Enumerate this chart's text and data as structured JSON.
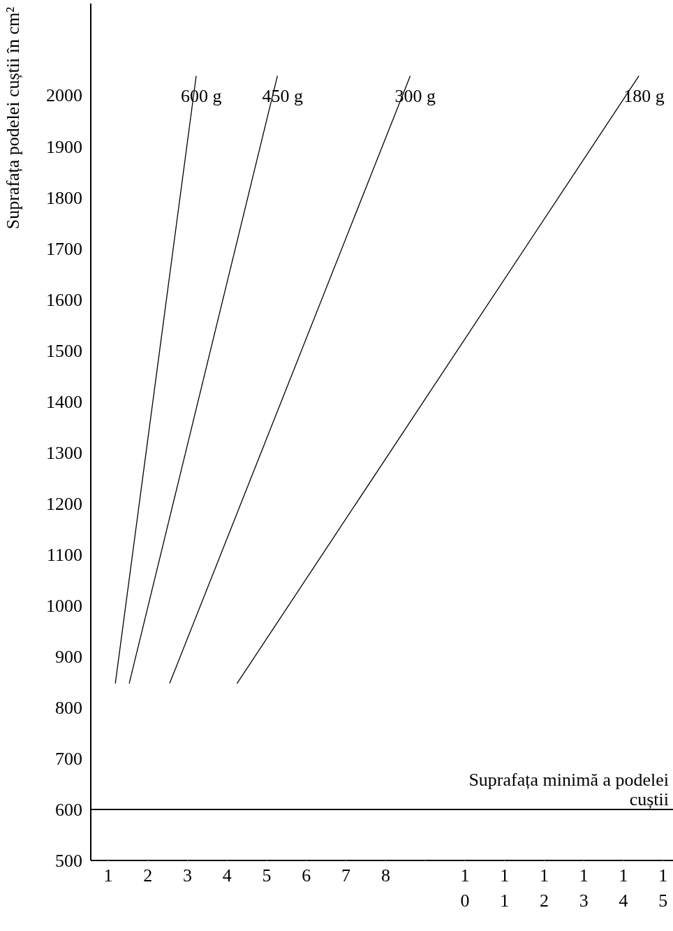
{
  "chart_data": {
    "type": "line",
    "ylabel": "Suprafața podelei cuștii în cm²",
    "xlim": [
      0.56,
      15.25
    ],
    "ylim": [
      500,
      2180
    ],
    "xticks": [
      1,
      2,
      3,
      4,
      5,
      6,
      7,
      8,
      {
        "value": 9,
        "label": null
      },
      10,
      11,
      12,
      13,
      14,
      15
    ],
    "yticks": [
      500,
      600,
      700,
      800,
      900,
      1000,
      1100,
      1200,
      1300,
      1400,
      1500,
      1600,
      1700,
      1800,
      1900,
      2000
    ],
    "series": [
      {
        "name": "600 g",
        "color": "#000000",
        "x": [
          1.18,
          3.22
        ],
        "values": [
          847,
          2038
        ]
      },
      {
        "name": "450 g",
        "color": "#000000",
        "x": [
          1.53,
          5.27
        ],
        "values": [
          847,
          2038
        ]
      },
      {
        "name": "300 g",
        "color": "#000000",
        "x": [
          2.55,
          8.62
        ],
        "values": [
          847,
          2038
        ]
      },
      {
        "name": "180 g",
        "color": "#000000",
        "x": [
          4.25,
          14.39
        ],
        "values": [
          847,
          2038
        ]
      }
    ],
    "ref_lines": [
      {
        "axis": "y",
        "value": 600,
        "label": "Suprafața minimă a podelei cuștii",
        "color": "#000000"
      }
    ],
    "grid": false,
    "legend": false,
    "marker": "none",
    "line_style": "solid"
  }
}
